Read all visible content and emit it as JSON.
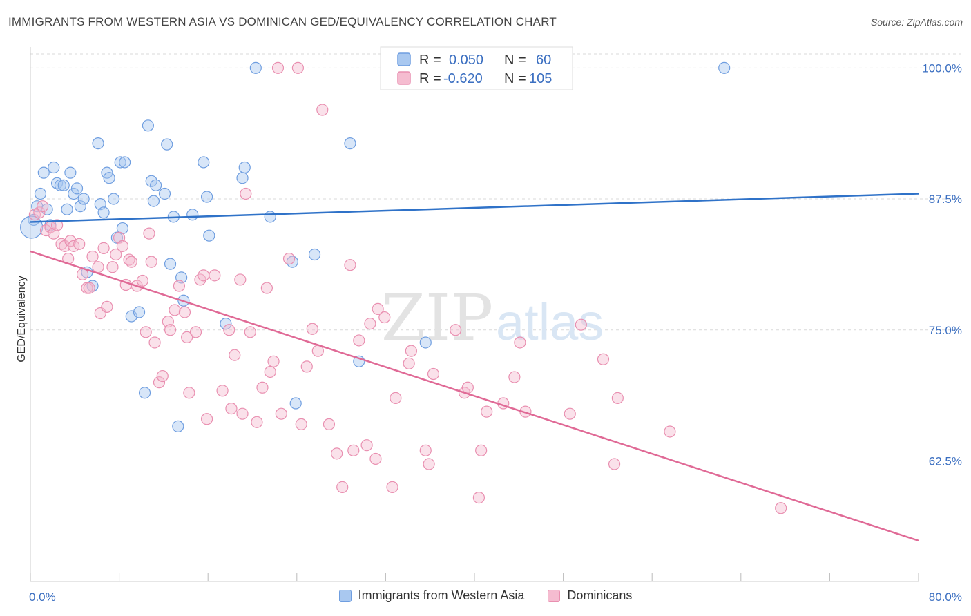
{
  "header": {
    "title": "IMMIGRANTS FROM WESTERN ASIA VS DOMINICAN GED/EQUIVALENCY CORRELATION CHART",
    "source": "Source: ZipAtlas.com"
  },
  "watermark": {
    "part1": "ZIP",
    "part2": "atlas"
  },
  "colors": {
    "blue_fill": "#a9c8f0",
    "blue_stroke": "#6f9ee0",
    "blue_line": "#2f72c8",
    "pink_fill": "#f5bcd0",
    "pink_stroke": "#e98fb0",
    "pink_line": "#e06a96",
    "axis_label": "#3b6fc1",
    "grid": "#d9d9d9"
  },
  "legend": {
    "rows": [
      {
        "r_label": "R = ",
        "r_value": "0.050",
        "n_label": "N = ",
        "n_value": "60"
      },
      {
        "r_label": "R = ",
        "r_value": "-0.620",
        "n_label": "N = ",
        "n_value": "105"
      }
    ]
  },
  "chart_data": {
    "type": "scatter",
    "title": "IMMIGRANTS FROM WESTERN ASIA VS DOMINICAN GED/EQUIVALENCY CORRELATION CHART",
    "ylabel": "GED/Equivalency",
    "xlim": [
      0,
      80
    ],
    "ylim": [
      51,
      102
    ],
    "x_tick_labels": {
      "min": "0.0%",
      "max": "80.0%"
    },
    "y_ticks": [
      {
        "value": 62.5,
        "label": "62.5%"
      },
      {
        "value": 75.0,
        "label": "75.0%"
      },
      {
        "value": 87.5,
        "label": "87.5%"
      },
      {
        "value": 100.0,
        "label": "100.0%"
      }
    ],
    "grid": "horizontal dashed",
    "series": [
      {
        "name": "Immigrants from Western Asia",
        "trend": {
          "x": [
            0,
            80
          ],
          "y": [
            85.3,
            88.0
          ]
        },
        "points": [
          [
            0.3,
            85.5
          ],
          [
            0.6,
            86.8
          ],
          [
            0.9,
            88.0
          ],
          [
            1.2,
            90.0
          ],
          [
            1.5,
            86.5
          ],
          [
            1.8,
            85.0
          ],
          [
            2.1,
            90.5
          ],
          [
            2.4,
            89.0
          ],
          [
            2.7,
            88.8
          ],
          [
            3.0,
            88.8
          ],
          [
            3.3,
            86.5
          ],
          [
            3.6,
            90.0
          ],
          [
            3.9,
            88.0
          ],
          [
            4.2,
            88.5
          ],
          [
            4.5,
            86.8
          ],
          [
            4.8,
            87.5
          ],
          [
            5.1,
            80.5
          ],
          [
            5.6,
            79.2
          ],
          [
            6.1,
            92.8
          ],
          [
            6.3,
            87.0
          ],
          [
            6.6,
            86.2
          ],
          [
            6.9,
            90.0
          ],
          [
            7.1,
            89.5
          ],
          [
            7.5,
            87.5
          ],
          [
            7.8,
            83.8
          ],
          [
            8.1,
            91.0
          ],
          [
            8.3,
            84.7
          ],
          [
            8.5,
            91.0
          ],
          [
            9.1,
            76.3
          ],
          [
            9.8,
            76.7
          ],
          [
            10.3,
            69.0
          ],
          [
            10.6,
            94.5
          ],
          [
            10.9,
            89.2
          ],
          [
            11.1,
            87.3
          ],
          [
            11.3,
            88.8
          ],
          [
            12.1,
            88.0
          ],
          [
            12.3,
            92.7
          ],
          [
            12.6,
            81.3
          ],
          [
            12.9,
            85.8
          ],
          [
            13.3,
            65.8
          ],
          [
            13.6,
            80.0
          ],
          [
            13.8,
            77.8
          ],
          [
            14.6,
            86.0
          ],
          [
            15.6,
            91.0
          ],
          [
            15.9,
            87.7
          ],
          [
            16.1,
            84.0
          ],
          [
            17.6,
            75.6
          ],
          [
            19.1,
            89.5
          ],
          [
            19.3,
            90.5
          ],
          [
            20.3,
            100.0
          ],
          [
            21.6,
            85.8
          ],
          [
            23.6,
            81.5
          ],
          [
            23.9,
            68.0
          ],
          [
            25.6,
            82.2
          ],
          [
            28.8,
            92.8
          ],
          [
            29.6,
            72.0
          ],
          [
            35.6,
            73.8
          ],
          [
            42.8,
            100.0
          ],
          [
            62.5,
            100.0
          ],
          [
            0.1,
            84.8
          ]
        ]
      },
      {
        "name": "Dominicans",
        "trend": {
          "x": [
            0,
            80
          ],
          "y": [
            82.5,
            54.9
          ]
        },
        "points": [
          [
            0.4,
            86.0
          ],
          [
            0.8,
            86.2
          ],
          [
            1.1,
            86.8
          ],
          [
            1.4,
            84.5
          ],
          [
            1.8,
            84.8
          ],
          [
            2.1,
            84.2
          ],
          [
            2.4,
            85.0
          ],
          [
            2.8,
            83.2
          ],
          [
            3.1,
            83.0
          ],
          [
            3.4,
            81.8
          ],
          [
            3.6,
            83.5
          ],
          [
            3.9,
            83.0
          ],
          [
            4.4,
            83.2
          ],
          [
            4.7,
            80.3
          ],
          [
            5.1,
            79.0
          ],
          [
            5.3,
            79.0
          ],
          [
            5.6,
            82.0
          ],
          [
            6.1,
            81.0
          ],
          [
            6.3,
            76.6
          ],
          [
            6.6,
            82.8
          ],
          [
            6.9,
            77.2
          ],
          [
            7.4,
            81.0
          ],
          [
            7.7,
            82.2
          ],
          [
            8.0,
            83.8
          ],
          [
            8.3,
            83.0
          ],
          [
            8.6,
            79.3
          ],
          [
            8.9,
            81.7
          ],
          [
            9.1,
            81.5
          ],
          [
            9.6,
            79.2
          ],
          [
            10.1,
            79.7
          ],
          [
            10.4,
            74.8
          ],
          [
            10.7,
            84.2
          ],
          [
            10.9,
            81.5
          ],
          [
            11.2,
            73.8
          ],
          [
            11.6,
            70.0
          ],
          [
            11.9,
            70.6
          ],
          [
            12.4,
            75.8
          ],
          [
            12.6,
            75.0
          ],
          [
            13.0,
            76.9
          ],
          [
            13.4,
            79.2
          ],
          [
            13.9,
            76.7
          ],
          [
            14.1,
            74.3
          ],
          [
            14.3,
            69.0
          ],
          [
            14.9,
            74.8
          ],
          [
            15.3,
            79.8
          ],
          [
            15.6,
            80.2
          ],
          [
            15.9,
            66.5
          ],
          [
            16.6,
            80.2
          ],
          [
            17.3,
            69.2
          ],
          [
            17.9,
            75.0
          ],
          [
            18.1,
            67.5
          ],
          [
            18.4,
            72.6
          ],
          [
            18.9,
            79.8
          ],
          [
            19.1,
            67.0
          ],
          [
            19.4,
            88.0
          ],
          [
            19.8,
            74.8
          ],
          [
            20.4,
            66.2
          ],
          [
            20.9,
            69.5
          ],
          [
            21.3,
            79.0
          ],
          [
            21.6,
            71.0
          ],
          [
            21.9,
            72.0
          ],
          [
            22.3,
            100.0
          ],
          [
            22.6,
            67.0
          ],
          [
            23.3,
            81.8
          ],
          [
            24.1,
            100.0
          ],
          [
            24.4,
            66.0
          ],
          [
            24.9,
            71.5
          ],
          [
            25.4,
            75.1
          ],
          [
            25.9,
            73.0
          ],
          [
            26.3,
            96.0
          ],
          [
            26.9,
            66.0
          ],
          [
            27.6,
            63.2
          ],
          [
            28.1,
            60.0
          ],
          [
            28.8,
            81.2
          ],
          [
            29.1,
            63.5
          ],
          [
            29.6,
            74.0
          ],
          [
            30.3,
            64.0
          ],
          [
            30.6,
            75.6
          ],
          [
            31.1,
            62.7
          ],
          [
            31.3,
            77.0
          ],
          [
            31.9,
            76.2
          ],
          [
            32.6,
            60.0
          ],
          [
            32.9,
            68.5
          ],
          [
            34.1,
            71.8
          ],
          [
            34.3,
            73.0
          ],
          [
            35.6,
            63.5
          ],
          [
            35.9,
            62.2
          ],
          [
            36.3,
            70.8
          ],
          [
            38.3,
            75.0
          ],
          [
            39.1,
            69.0
          ],
          [
            39.4,
            69.5
          ],
          [
            40.4,
            59.0
          ],
          [
            40.6,
            63.5
          ],
          [
            41.1,
            67.2
          ],
          [
            42.6,
            68.0
          ],
          [
            43.6,
            70.5
          ],
          [
            44.1,
            73.8
          ],
          [
            44.6,
            67.2
          ],
          [
            48.6,
            67.0
          ],
          [
            49.6,
            75.5
          ],
          [
            51.6,
            72.2
          ],
          [
            52.6,
            62.2
          ],
          [
            52.9,
            68.5
          ],
          [
            57.6,
            65.3
          ],
          [
            67.6,
            58.0
          ]
        ]
      }
    ]
  }
}
